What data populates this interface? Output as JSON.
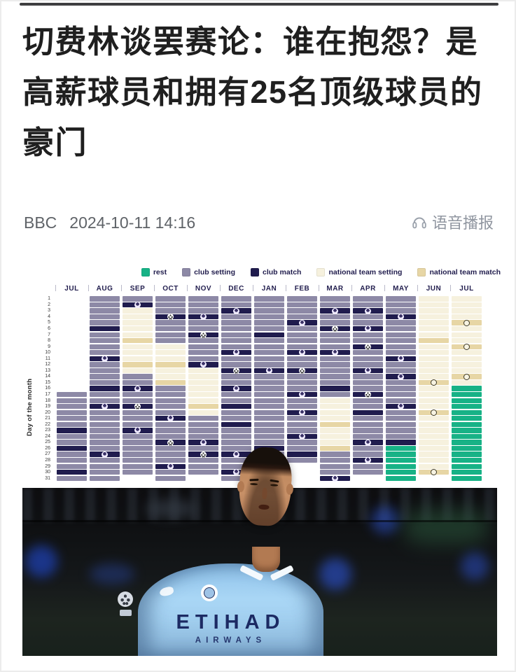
{
  "article": {
    "title": "切费林谈罢赛论：谁在抱怨？是高薪球员和拥有25名顶级球员的豪门",
    "source": "BBC",
    "published": "2024-10-11 14:16",
    "voice_label": "语音播报"
  },
  "chart_data": {
    "type": "heatmap",
    "title": "",
    "ylabel": "Day of the month",
    "y_range": [
      1,
      31
    ],
    "x_labels": [
      "JUL",
      "AUG",
      "SEP",
      "OCT",
      "NOV",
      "DEC",
      "JAN",
      "FEB",
      "MAR",
      "APR",
      "MAY",
      "JUN",
      "JUL"
    ],
    "legend": [
      {
        "label": "rest",
        "color": "#17b286"
      },
      {
        "label": "club setting",
        "color": "#8d89a6"
      },
      {
        "label": "club match",
        "color": "#201c4e"
      },
      {
        "label": "national team setting",
        "color": "#f6f1de"
      },
      {
        "label": "national team match",
        "color": "#e7d6a5"
      }
    ],
    "cell_codes": {
      "E": "none",
      "S": "club setting",
      "M": "club match",
      "Mp": "club match with league ball icon",
      "Mu": "club match with champions-league ball icon",
      "N": "national team setting",
      "T": "national team match",
      "Tc": "national team match with trophy icon",
      "R": "rest"
    },
    "months": [
      {
        "label": "JUL",
        "days": [
          "E",
          "E",
          "E",
          "E",
          "E",
          "E",
          "E",
          "E",
          "E",
          "E",
          "E",
          "E",
          "E",
          "E",
          "E",
          "E",
          "S",
          "S",
          "S",
          "S",
          "S",
          "S",
          "M",
          "S",
          "S",
          "M",
          "S",
          "S",
          "S",
          "M",
          "S"
        ]
      },
      {
        "label": "AUG",
        "days": [
          "S",
          "S",
          "S",
          "S",
          "S",
          "M",
          "S",
          "S",
          "S",
          "S",
          "Mp",
          "S",
          "S",
          "S",
          "S",
          "M",
          "S",
          "S",
          "Mp",
          "S",
          "S",
          "S",
          "S",
          "S",
          "S",
          "S",
          "Mp",
          "S",
          "S",
          "S",
          "S"
        ]
      },
      {
        "label": "SEP",
        "days": [
          "S",
          "Mp",
          "N",
          "N",
          "N",
          "N",
          "N",
          "T",
          "N",
          "N",
          "N",
          "T",
          "N",
          "S",
          "S",
          "Mp",
          "S",
          "S",
          "Mu",
          "S",
          "S",
          "S",
          "Mp",
          "S",
          "S",
          "S",
          "S",
          "S",
          "S",
          "S",
          "E"
        ]
      },
      {
        "label": "OCT",
        "days": [
          "S",
          "S",
          "S",
          "Mu",
          "S",
          "S",
          "S",
          "S",
          "N",
          "N",
          "N",
          "T",
          "N",
          "N",
          "T",
          "S",
          "S",
          "S",
          "S",
          "S",
          "Mp",
          "S",
          "S",
          "S",
          "Mu",
          "S",
          "S",
          "S",
          "Mp",
          "S",
          "S"
        ]
      },
      {
        "label": "NOV",
        "days": [
          "S",
          "S",
          "S",
          "Mp",
          "S",
          "S",
          "Mu",
          "S",
          "S",
          "S",
          "S",
          "Mp",
          "N",
          "N",
          "N",
          "N",
          "N",
          "N",
          "T",
          "N",
          "S",
          "S",
          "S",
          "S",
          "Mp",
          "S",
          "Mu",
          "S",
          "S",
          "S",
          "E"
        ]
      },
      {
        "label": "DEC",
        "days": [
          "S",
          "S",
          "Mp",
          "S",
          "S",
          "S",
          "S",
          "S",
          "S",
          "Mp",
          "S",
          "S",
          "Mu",
          "S",
          "S",
          "Mp",
          "S",
          "S",
          "M",
          "S",
          "S",
          "M",
          "S",
          "S",
          "S",
          "S",
          "Mp",
          "S",
          "S",
          "Mp",
          "S"
        ]
      },
      {
        "label": "JAN",
        "days": [
          "S",
          "S",
          "S",
          "S",
          "S",
          "S",
          "M",
          "S",
          "S",
          "S",
          "S",
          "S",
          "Mp",
          "S",
          "S",
          "S",
          "S",
          "S",
          "S",
          "S",
          "S",
          "S",
          "S",
          "S",
          "S",
          "M",
          "S",
          "S",
          "S",
          "S",
          "S"
        ]
      },
      {
        "label": "FEB",
        "days": [
          "S",
          "S",
          "S",
          "S",
          "Mp",
          "S",
          "S",
          "S",
          "S",
          "Mp",
          "S",
          "S",
          "Mu",
          "S",
          "S",
          "S",
          "Mp",
          "S",
          "S",
          "Mp",
          "S",
          "S",
          "S",
          "Mp",
          "S",
          "S",
          "M",
          "S",
          "E",
          "E",
          "E"
        ]
      },
      {
        "label": "MAR",
        "days": [
          "S",
          "S",
          "Mp",
          "S",
          "S",
          "Mu",
          "S",
          "S",
          "S",
          "Mp",
          "S",
          "S",
          "S",
          "S",
          "S",
          "M",
          "S",
          "N",
          "N",
          "N",
          "N",
          "T",
          "N",
          "N",
          "N",
          "T",
          "S",
          "S",
          "S",
          "S",
          "Mp"
        ]
      },
      {
        "label": "APR",
        "days": [
          "S",
          "S",
          "Mp",
          "S",
          "S",
          "Mp",
          "S",
          "S",
          "Mu",
          "S",
          "S",
          "S",
          "Mp",
          "S",
          "S",
          "S",
          "Mu",
          "S",
          "S",
          "M",
          "S",
          "S",
          "S",
          "S",
          "Mp",
          "S",
          "S",
          "Mp",
          "S",
          "S",
          "E"
        ]
      },
      {
        "label": "MAY",
        "days": [
          "S",
          "S",
          "S",
          "Mp",
          "S",
          "S",
          "S",
          "S",
          "S",
          "S",
          "Mp",
          "S",
          "S",
          "Mp",
          "S",
          "S",
          "S",
          "S",
          "Mp",
          "S",
          "S",
          "S",
          "S",
          "S",
          "M",
          "R",
          "R",
          "R",
          "R",
          "R",
          "R"
        ]
      },
      {
        "label": "JUN",
        "days": [
          "N",
          "N",
          "N",
          "N",
          "N",
          "N",
          "N",
          "T",
          "N",
          "N",
          "N",
          "N",
          "N",
          "N",
          "Tc",
          "N",
          "N",
          "N",
          "N",
          "Tc",
          "N",
          "N",
          "N",
          "N",
          "N",
          "N",
          "N",
          "N",
          "N",
          "Tc",
          "E"
        ]
      },
      {
        "label": "JUL",
        "days": [
          "N",
          "N",
          "N",
          "N",
          "Tc",
          "N",
          "N",
          "N",
          "Tc",
          "N",
          "N",
          "N",
          "N",
          "Tc",
          "N",
          "R",
          "R",
          "R",
          "R",
          "R",
          "R",
          "R",
          "R",
          "R",
          "R",
          "R",
          "R",
          "R",
          "R",
          "R",
          "R"
        ]
      }
    ]
  },
  "photo": {
    "shirt_text_top": "ETIHAD",
    "shirt_text_bottom": "AIRWAYS"
  }
}
